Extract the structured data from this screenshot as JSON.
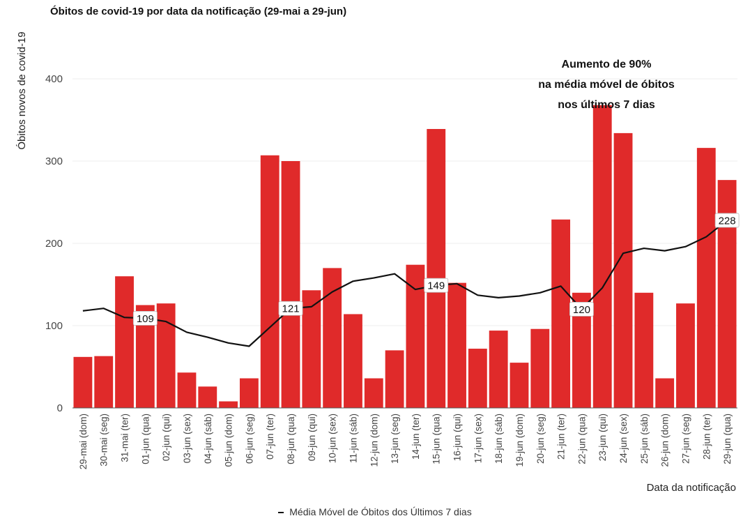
{
  "chart_data": {
    "type": "bar",
    "title": "Óbitos de covid-19 por data da notificação (29-mai a 29-jun)",
    "xlabel": "Data da notificação",
    "ylabel": "Óbitos novos de covid-19",
    "ylim": [
      0,
      400
    ],
    "yticks": [
      0,
      100,
      200,
      300,
      400
    ],
    "grid": true,
    "legend": "bottom-center",
    "categories": [
      "29-mai (dom)",
      "30-mai (seg)",
      "31-mai (ter)",
      "01-jun (qua)",
      "02-jun (qui)",
      "03-jun (sex)",
      "04-jun (sáb)",
      "05-jun (dom)",
      "06-jun (seg)",
      "07-jun (ter)",
      "08-jun (qua)",
      "09-jun (qui)",
      "10-jun (sex)",
      "11-jun (sáb)",
      "12-jun (dom)",
      "13-jun (seg)",
      "14-jun (ter)",
      "15-jun (qua)",
      "16-jun (qui)",
      "17-jun (sex)",
      "18-jun (sáb)",
      "19-jun (dom)",
      "20-jun (seg)",
      "21-jun (ter)",
      "22-jun (qua)",
      "23-jun (qui)",
      "24-jun (sex)",
      "25-jun (sáb)",
      "26-jun (dom)",
      "27-jun (seg)",
      "28-jun (ter)",
      "29-jun (qua)"
    ],
    "series": [
      {
        "type": "bar",
        "color": "#e02a2a",
        "values": [
          62,
          63,
          160,
          125,
          127,
          43,
          26,
          8,
          36,
          307,
          300,
          143,
          170,
          114,
          36,
          70,
          174,
          339,
          152,
          72,
          94,
          55,
          96,
          229,
          140,
          368,
          334,
          140,
          36,
          127,
          316,
          277
        ]
      },
      {
        "type": "line",
        "name": "Média Móvel de Óbitos dos Últimos 7 dias",
        "color": "#111111",
        "values": [
          118,
          121,
          110,
          109,
          105,
          92,
          86,
          79,
          75,
          98,
          121,
          123,
          141,
          154,
          158,
          163,
          144,
          149,
          151,
          137,
          134,
          136,
          140,
          148,
          120,
          146,
          188,
          194,
          191,
          196,
          208,
          228
        ],
        "labeled": [
          {
            "index": 3,
            "text": "109"
          },
          {
            "index": 10,
            "text": "121"
          },
          {
            "index": 17,
            "text": "149"
          },
          {
            "index": 24,
            "text": "120"
          },
          {
            "index": 31,
            "text": "228"
          }
        ]
      }
    ],
    "annotation": [
      "Aumento de 90%",
      "na média móvel de óbitos",
      "nos últimos 7 dias"
    ]
  }
}
